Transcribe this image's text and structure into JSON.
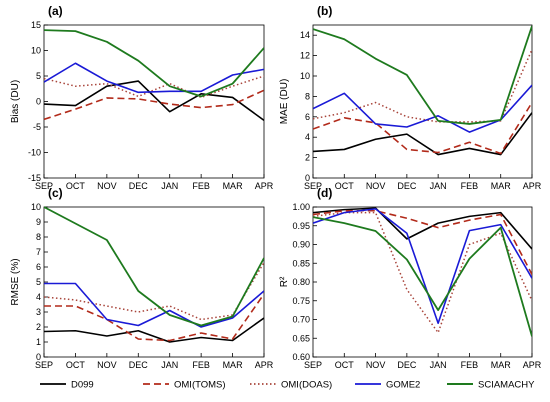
{
  "series_styles": [
    {
      "name": "D099",
      "color": "#000000",
      "dash": "",
      "width": 1.6
    },
    {
      "name": "OMI(TOMS)",
      "color": "#b22a1a",
      "dash": "7,4",
      "width": 1.6
    },
    {
      "name": "OMI(DOAS)",
      "color": "#a8443a",
      "dash": "1.5,2.5",
      "width": 1.5
    },
    {
      "name": "GOME2",
      "color": "#1a1ad6",
      "dash": "",
      "width": 1.6
    },
    {
      "name": "SCIAMACHY",
      "color": "#1e7a1e",
      "dash": "",
      "width": 1.8
    }
  ],
  "chart_data": [
    {
      "type": "line",
      "panel_label": "(a)",
      "ylabel": "Bias (DU)",
      "categories": [
        "SEP",
        "OCT",
        "NOV",
        "DEC",
        "JAN",
        "FEB",
        "MAR",
        "APR"
      ],
      "ylim": [
        -15,
        15
      ],
      "yticks": [
        -15,
        -10,
        -5,
        0,
        5,
        10,
        15
      ],
      "ytick_labels": [
        "-15",
        "-10",
        "-5",
        "0",
        "5",
        "10",
        "15"
      ],
      "series": [
        {
          "name": "D099",
          "values": [
            -0.5,
            -0.8,
            3.0,
            4.0,
            -2.0,
            1.5,
            0.8,
            -3.7
          ]
        },
        {
          "name": "OMI(TOMS)",
          "values": [
            -3.5,
            -1.5,
            0.7,
            0.5,
            -0.5,
            -1.2,
            -0.6,
            2.2
          ]
        },
        {
          "name": "OMI(DOAS)",
          "values": [
            4.5,
            3.0,
            3.5,
            1.0,
            3.5,
            0.8,
            3.0,
            5.0
          ]
        },
        {
          "name": "GOME2",
          "values": [
            3.8,
            7.5,
            4.0,
            1.8,
            2.0,
            2.0,
            5.2,
            6.3
          ]
        },
        {
          "name": "SCIAMACHY",
          "values": [
            14.0,
            13.8,
            11.7,
            8.0,
            3.0,
            1.0,
            3.5,
            10.5
          ]
        }
      ]
    },
    {
      "type": "line",
      "panel_label": "(b)",
      "ylabel": "MAE (DU)",
      "categories": [
        "SEP",
        "OCT",
        "NOV",
        "DEC",
        "JAN",
        "FEB",
        "MAR",
        "APR"
      ],
      "ylim": [
        0,
        15
      ],
      "yticks": [
        0,
        2,
        4,
        6,
        8,
        10,
        12,
        14
      ],
      "ytick_labels": [
        "0",
        "2",
        "4",
        "6",
        "8",
        "10",
        "12",
        "14"
      ],
      "series": [
        {
          "name": "D099",
          "values": [
            2.6,
            2.8,
            3.8,
            4.3,
            2.3,
            2.9,
            2.3,
            6.4
          ]
        },
        {
          "name": "OMI(TOMS)",
          "values": [
            4.8,
            5.9,
            5.4,
            2.8,
            2.5,
            3.5,
            2.4,
            7.4
          ]
        },
        {
          "name": "OMI(DOAS)",
          "values": [
            5.8,
            6.4,
            7.4,
            6.0,
            5.5,
            5.5,
            5.6,
            12.6
          ]
        },
        {
          "name": "GOME2",
          "values": [
            6.8,
            8.3,
            5.3,
            5.0,
            6.1,
            4.5,
            5.7,
            9.1
          ]
        },
        {
          "name": "SCIAMACHY",
          "values": [
            14.6,
            13.6,
            11.7,
            10.1,
            5.6,
            5.3,
            5.7,
            14.9
          ]
        }
      ]
    },
    {
      "type": "line",
      "panel_label": "(c)",
      "ylabel": "RMSE (%)",
      "categories": [
        "SEP",
        "OCT",
        "NOV",
        "DEC",
        "JAN",
        "FEB",
        "MAR",
        "APR"
      ],
      "ylim": [
        0,
        10
      ],
      "yticks": [
        0,
        1,
        2,
        3,
        4,
        5,
        6,
        7,
        8,
        9,
        10
      ],
      "ytick_labels": [
        "0",
        "1",
        "2",
        "3",
        "4",
        "5",
        "6",
        "7",
        "8",
        "9",
        "10"
      ],
      "series": [
        {
          "name": "D099",
          "values": [
            1.7,
            1.75,
            1.4,
            1.75,
            1.0,
            1.3,
            1.1,
            2.6
          ]
        },
        {
          "name": "OMI(TOMS)",
          "values": [
            3.4,
            3.4,
            2.5,
            1.2,
            1.1,
            1.6,
            1.2,
            4.2
          ]
        },
        {
          "name": "OMI(DOAS)",
          "values": [
            4.0,
            3.8,
            3.4,
            3.0,
            3.4,
            2.5,
            2.8,
            6.3
          ]
        },
        {
          "name": "GOME2",
          "values": [
            4.9,
            4.9,
            2.5,
            2.1,
            3.1,
            2.0,
            2.6,
            4.4
          ]
        },
        {
          "name": "SCIAMACHY",
          "values": [
            10.0,
            8.9,
            7.8,
            4.4,
            2.8,
            2.1,
            2.7,
            6.6
          ]
        }
      ]
    },
    {
      "type": "line",
      "panel_label": "(d)",
      "ylabel": "R²",
      "categories": [
        "SEP",
        "OCT",
        "NOV",
        "DEC",
        "JAN",
        "FEB",
        "MAR",
        "APR"
      ],
      "ylim": [
        0.6,
        1.0
      ],
      "yticks": [
        0.6,
        0.65,
        0.7,
        0.75,
        0.8,
        0.85,
        0.9,
        0.95,
        1.0
      ],
      "ytick_labels": [
        "0.60",
        "0.65",
        "0.70",
        "0.75",
        "0.80",
        "0.85",
        "0.90",
        "0.95",
        "1.00"
      ],
      "series": [
        {
          "name": "D099",
          "values": [
            0.985,
            0.993,
            0.997,
            0.915,
            0.957,
            0.975,
            0.985,
            0.888
          ]
        },
        {
          "name": "OMI(TOMS)",
          "values": [
            0.98,
            0.99,
            0.99,
            0.97,
            0.945,
            0.965,
            0.98,
            0.82
          ]
        },
        {
          "name": "OMI(DOAS)",
          "values": [
            0.975,
            0.985,
            0.985,
            0.78,
            0.665,
            0.9,
            0.93,
            0.75
          ]
        },
        {
          "name": "GOME2",
          "values": [
            0.957,
            0.985,
            0.995,
            0.93,
            0.69,
            0.937,
            0.953,
            0.81
          ]
        },
        {
          "name": "SCIAMACHY",
          "values": [
            0.973,
            0.957,
            0.936,
            0.86,
            0.725,
            0.862,
            0.945,
            0.655
          ]
        }
      ]
    }
  ],
  "legend": {
    "placement": "bottom",
    "entries": [
      "D099",
      "OMI(TOMS)",
      "OMI(DOAS)",
      "GOME2",
      "SCIAMACHY"
    ]
  }
}
